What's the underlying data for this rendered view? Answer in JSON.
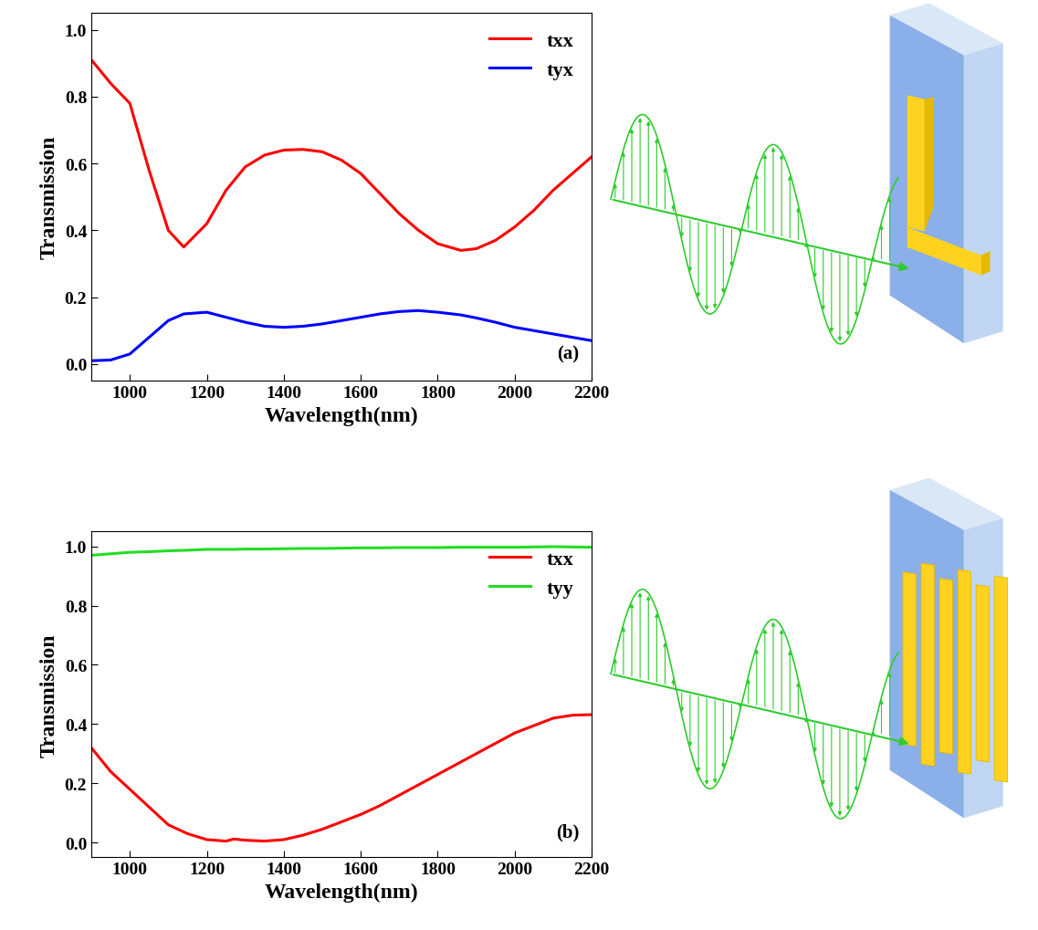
{
  "chart_data": [
    {
      "type": "line",
      "panel_label": "(a)",
      "x_label": "Wavelength(nm)",
      "y_label": "Transmission",
      "xlim": [
        900,
        2200
      ],
      "xticks": [
        1000,
        1200,
        1400,
        1600,
        1800,
        2000,
        2200
      ],
      "ylim": [
        -0.05,
        1.05
      ],
      "yticks": [
        {
          "value": 0.0,
          "label": "0.0"
        },
        0.2,
        0.4,
        0.6,
        0.8,
        {
          "value": 1.0,
          "label": "1.0"
        }
      ],
      "legend": "upper right",
      "grid": false,
      "x": [
        900,
        950,
        1000,
        1050,
        1100,
        1140,
        1200,
        1250,
        1300,
        1350,
        1400,
        1450,
        1500,
        1550,
        1600,
        1650,
        1700,
        1750,
        1800,
        1860,
        1900,
        1950,
        2000,
        2050,
        2100,
        2150,
        2200
      ],
      "series": [
        {
          "name": "txx",
          "color": "#ff0000",
          "values": [
            0.91,
            0.84,
            0.78,
            0.58,
            0.4,
            0.35,
            0.42,
            0.52,
            0.59,
            0.625,
            0.64,
            0.642,
            0.635,
            0.61,
            0.57,
            0.51,
            0.45,
            0.4,
            0.36,
            0.34,
            0.345,
            0.37,
            0.41,
            0.46,
            0.52,
            0.57,
            0.62
          ]
        },
        {
          "name": "tyx",
          "color": "#0000ff",
          "values": [
            0.01,
            0.012,
            0.03,
            0.08,
            0.13,
            0.15,
            0.155,
            0.14,
            0.125,
            0.113,
            0.11,
            0.113,
            0.12,
            0.13,
            0.14,
            0.15,
            0.157,
            0.16,
            0.155,
            0.147,
            0.138,
            0.125,
            0.11,
            0.1,
            0.09,
            0.08,
            0.07
          ]
        }
      ]
    },
    {
      "type": "line",
      "panel_label": "(b)",
      "x_label": "Wavelength(nm)",
      "y_label": "Transmission",
      "xlim": [
        900,
        2200
      ],
      "xticks": [
        1000,
        1200,
        1400,
        1600,
        1800,
        2000,
        2200
      ],
      "ylim": [
        -0.05,
        1.05
      ],
      "yticks": [
        {
          "value": 0.0,
          "label": "0.0"
        },
        0.2,
        0.4,
        0.6,
        0.8,
        {
          "value": 1.0,
          "label": "1.0"
        }
      ],
      "legend": "upper right",
      "grid": false,
      "x": [
        900,
        950,
        1000,
        1050,
        1100,
        1150,
        1200,
        1250,
        1270,
        1300,
        1350,
        1400,
        1450,
        1500,
        1550,
        1600,
        1650,
        1700,
        1750,
        1800,
        1850,
        1900,
        1950,
        2000,
        2050,
        2100,
        2150,
        2200
      ],
      "series": [
        {
          "name": "txx",
          "color": "#ff0000",
          "values": [
            0.32,
            0.24,
            0.18,
            0.12,
            0.06,
            0.03,
            0.01,
            0.005,
            0.012,
            0.008,
            0.005,
            0.01,
            0.025,
            0.045,
            0.07,
            0.095,
            0.125,
            0.16,
            0.195,
            0.23,
            0.265,
            0.3,
            0.335,
            0.37,
            0.395,
            0.42,
            0.43,
            0.432
          ]
        },
        {
          "name": "tyy",
          "color": "#22dd22",
          "values": [
            0.97,
            0.975,
            0.98,
            0.982,
            0.985,
            0.987,
            0.99,
            0.99,
            0.99,
            0.991,
            0.991,
            0.992,
            0.993,
            0.993,
            0.994,
            0.995,
            0.995,
            0.996,
            0.996,
            0.996,
            0.997,
            0.997,
            0.997,
            0.997,
            0.998,
            0.999,
            0.998,
            0.997
          ]
        }
      ]
    }
  ]
}
